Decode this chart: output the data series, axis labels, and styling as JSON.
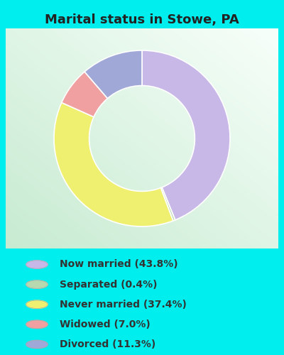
{
  "title": "Marital status in Stowe, PA",
  "slices": [
    {
      "label": "Now married (43.8%)",
      "value": 43.8,
      "color": "#c8b8e8"
    },
    {
      "label": "Separated (0.4%)",
      "value": 0.4,
      "color": "#b8d8b0"
    },
    {
      "label": "Never married (37.4%)",
      "value": 37.4,
      "color": "#f0f070"
    },
    {
      "label": "Widowed (7.0%)",
      "value": 7.0,
      "color": "#f0a0a0"
    },
    {
      "label": "Divorced (11.3%)",
      "value": 11.3,
      "color": "#a0a8d8"
    }
  ],
  "bg_cyan": "#00eeee",
  "title_fontsize": 13,
  "title_color": "#222222",
  "legend_fontsize": 10,
  "legend_text_color": "#333333",
  "chart_top_left": "#d8ede0",
  "chart_bottom_right": "#f5fffa"
}
